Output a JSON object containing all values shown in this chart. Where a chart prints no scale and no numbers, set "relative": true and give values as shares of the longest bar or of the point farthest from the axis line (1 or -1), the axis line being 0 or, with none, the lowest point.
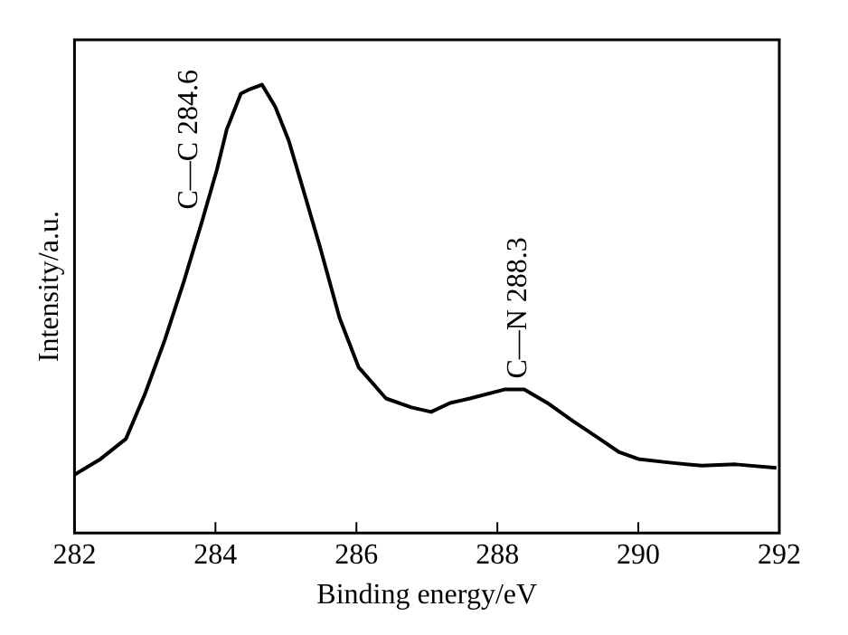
{
  "chart_data": {
    "type": "line",
    "relative": true,
    "xlabel": "Binding energy/eV",
    "ylabel": "Intensity/a.u.",
    "xlim": [
      282,
      292
    ],
    "xticks": [
      282,
      284,
      286,
      288,
      290,
      292
    ],
    "grid": false,
    "legend": false,
    "marker": "none",
    "line_style": "solid",
    "annotations": [
      {
        "text": "C—C 284.6",
        "x": 284.6,
        "y": 1.0
      },
      {
        "text": "C—N 288.3",
        "x": 288.3,
        "y": 0.32
      }
    ],
    "series": [
      {
        "color": "#000000",
        "x": [
          282.0,
          282.37,
          282.73,
          283.0,
          283.28,
          283.55,
          283.8,
          284.02,
          284.16,
          284.36,
          284.49,
          284.66,
          284.85,
          285.04,
          285.2,
          285.48,
          285.76,
          286.03,
          286.42,
          286.78,
          287.06,
          287.33,
          287.61,
          288.1,
          288.38,
          288.71,
          289.07,
          289.45,
          289.73,
          290.0,
          290.44,
          290.9,
          291.38,
          291.96
        ],
        "values": [
          0.13,
          0.165,
          0.21,
          0.31,
          0.43,
          0.56,
          0.69,
          0.81,
          0.9,
          0.98,
          0.99,
          1.0,
          0.95,
          0.875,
          0.79,
          0.64,
          0.48,
          0.37,
          0.3,
          0.28,
          0.27,
          0.29,
          0.3,
          0.32,
          0.32,
          0.29,
          0.25,
          0.21,
          0.18,
          0.165,
          0.157,
          0.15,
          0.153,
          0.145
        ]
      }
    ]
  }
}
